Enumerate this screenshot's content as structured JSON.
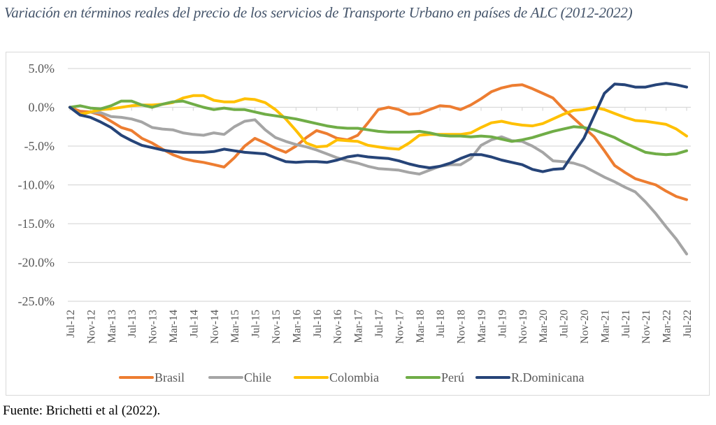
{
  "title": "Variación en términos reales del precio de los servicios de Transporte Urbano en países de ALC (2012-2022)",
  "source": "Fuente: Brichetti et al (2022).",
  "chart_data": {
    "type": "line",
    "title": "Variación en términos reales del precio de los servicios de Transporte Urbano en países de ALC (2012-2022)",
    "xlabel": "",
    "ylabel": "",
    "ylim": [
      -25,
      5
    ],
    "yticks": [
      5,
      0,
      -5,
      -10,
      -15,
      -20,
      -25
    ],
    "ytick_labels": [
      "5.0%",
      "0.0%",
      "-5.0%",
      "-10.0%",
      "-15.0%",
      "-20.0%",
      "-25.0%"
    ],
    "grid": true,
    "legend_position": "bottom",
    "x_tick_labels": [
      "Jul-12",
      "Nov-12",
      "Mar-13",
      "Jul-13",
      "Nov-13",
      "Mar-14",
      "Jul-14",
      "Nov-14",
      "Mar-15",
      "Jul-15",
      "Nov-15",
      "Mar-16",
      "Jul-16",
      "Nov-16",
      "Mar-17",
      "Jul-17",
      "Nov-17",
      "Mar-18",
      "Jul-18",
      "Nov-18",
      "Mar-19",
      "Jul-19",
      "Nov-19",
      "Mar-20",
      "Jul-20",
      "Nov-20",
      "Mar-21",
      "Jul-21",
      "Nov-21",
      "Mar-22",
      "Jul-22"
    ],
    "x_step_months": 2,
    "x_start": "Jul-12",
    "series": [
      {
        "name": "Brasil",
        "color": "#ed7d31",
        "values": [
          0,
          -0.5,
          -0.6,
          -1.0,
          -1.8,
          -2.6,
          -3.0,
          -4.0,
          -4.6,
          -5.4,
          -6.1,
          -6.6,
          -6.9,
          -7.1,
          -7.4,
          -7.7,
          -6.5,
          -5.0,
          -4.0,
          -4.6,
          -5.3,
          -5.8,
          -5.0,
          -3.9,
          -3.0,
          -3.4,
          -4.0,
          -4.2,
          -3.6,
          -2.0,
          -0.3,
          0.0,
          -0.3,
          -0.9,
          -0.8,
          -0.3,
          0.2,
          0.1,
          -0.3,
          0.3,
          1.1,
          2.0,
          2.5,
          2.8,
          2.9,
          2.4,
          1.8,
          1.2,
          -0.2,
          -1.4,
          -2.6,
          -3.8,
          -5.6,
          -7.5,
          -8.4,
          -9.2,
          -9.6,
          -10.0,
          -10.8,
          -11.5,
          -11.9
        ]
      },
      {
        "name": "Chile",
        "color": "#a5a5a5",
        "values": [
          0,
          -1.0,
          -0.6,
          -0.7,
          -1.2,
          -1.3,
          -1.5,
          -1.9,
          -2.6,
          -2.8,
          -2.9,
          -3.3,
          -3.5,
          -3.6,
          -3.3,
          -3.5,
          -2.5,
          -1.8,
          -1.6,
          -2.9,
          -3.9,
          -4.4,
          -4.8,
          -5.1,
          -5.5,
          -6.0,
          -6.5,
          -6.9,
          -7.2,
          -7.6,
          -7.9,
          -8.0,
          -8.1,
          -8.4,
          -8.6,
          -8.1,
          -7.6,
          -7.4,
          -7.4,
          -6.6,
          -4.9,
          -4.2,
          -3.8,
          -4.3,
          -4.4,
          -5.0,
          -5.8,
          -6.9,
          -7.0,
          -7.2,
          -7.6,
          -8.3,
          -9.0,
          -9.6,
          -10.3,
          -10.9,
          -12.2,
          -13.7,
          -15.4,
          -17.0,
          -18.9
        ]
      },
      {
        "name": "Colombia",
        "color": "#ffc000",
        "values": [
          0,
          -0.9,
          -0.6,
          -0.3,
          -0.2,
          0.0,
          0.2,
          0.3,
          0.3,
          0.4,
          0.6,
          1.2,
          1.5,
          1.5,
          0.9,
          0.7,
          0.7,
          1.1,
          1.0,
          0.6,
          -0.3,
          -1.5,
          -3.0,
          -4.6,
          -5.1,
          -5.0,
          -4.2,
          -4.3,
          -4.4,
          -4.9,
          -5.1,
          -5.3,
          -5.4,
          -4.6,
          -3.6,
          -3.5,
          -3.5,
          -3.5,
          -3.5,
          -3.3,
          -2.6,
          -2.0,
          -1.8,
          -2.1,
          -2.3,
          -2.4,
          -2.1,
          -1.5,
          -0.9,
          -0.4,
          -0.3,
          0.0,
          -0.3,
          -0.8,
          -1.3,
          -1.7,
          -1.8,
          -2.0,
          -2.2,
          -2.8,
          -3.7
        ]
      },
      {
        "name": "Perú",
        "color": "#70ad47",
        "values": [
          0,
          0.2,
          -0.1,
          -0.2,
          0.2,
          0.8,
          0.8,
          0.3,
          0.0,
          0.4,
          0.7,
          0.8,
          0.4,
          0.0,
          -0.3,
          -0.1,
          -0.3,
          -0.3,
          -0.6,
          -0.9,
          -1.1,
          -1.3,
          -1.5,
          -1.8,
          -2.1,
          -2.4,
          -2.6,
          -2.7,
          -2.7,
          -2.9,
          -3.1,
          -3.2,
          -3.2,
          -3.2,
          -3.1,
          -3.3,
          -3.6,
          -3.7,
          -3.7,
          -3.8,
          -3.7,
          -3.8,
          -4.1,
          -4.4,
          -4.2,
          -3.9,
          -3.5,
          -3.1,
          -2.8,
          -2.5,
          -2.6,
          -2.9,
          -3.4,
          -3.9,
          -4.6,
          -5.2,
          -5.8,
          -6.0,
          -6.1,
          -6.0,
          -5.6
        ]
      },
      {
        "name": "R.Dominicana",
        "color": "#264478",
        "values": [
          0,
          -1.0,
          -1.3,
          -1.9,
          -2.6,
          -3.6,
          -4.3,
          -4.9,
          -5.2,
          -5.5,
          -5.7,
          -5.8,
          -5.8,
          -5.8,
          -5.7,
          -5.4,
          -5.6,
          -5.8,
          -5.9,
          -6.0,
          -6.5,
          -7.0,
          -7.1,
          -7.0,
          -7.0,
          -7.1,
          -6.8,
          -6.4,
          -6.2,
          -6.4,
          -6.5,
          -6.6,
          -6.9,
          -7.3,
          -7.6,
          -7.8,
          -7.6,
          -7.2,
          -6.6,
          -6.1,
          -6.1,
          -6.4,
          -6.8,
          -7.1,
          -7.4,
          -8.0,
          -8.3,
          -8.0,
          -7.9,
          -5.9,
          -4.0,
          -1.1,
          1.8,
          3.0,
          2.9,
          2.6,
          2.6,
          2.9,
          3.1,
          2.9,
          2.6
        ]
      }
    ]
  }
}
